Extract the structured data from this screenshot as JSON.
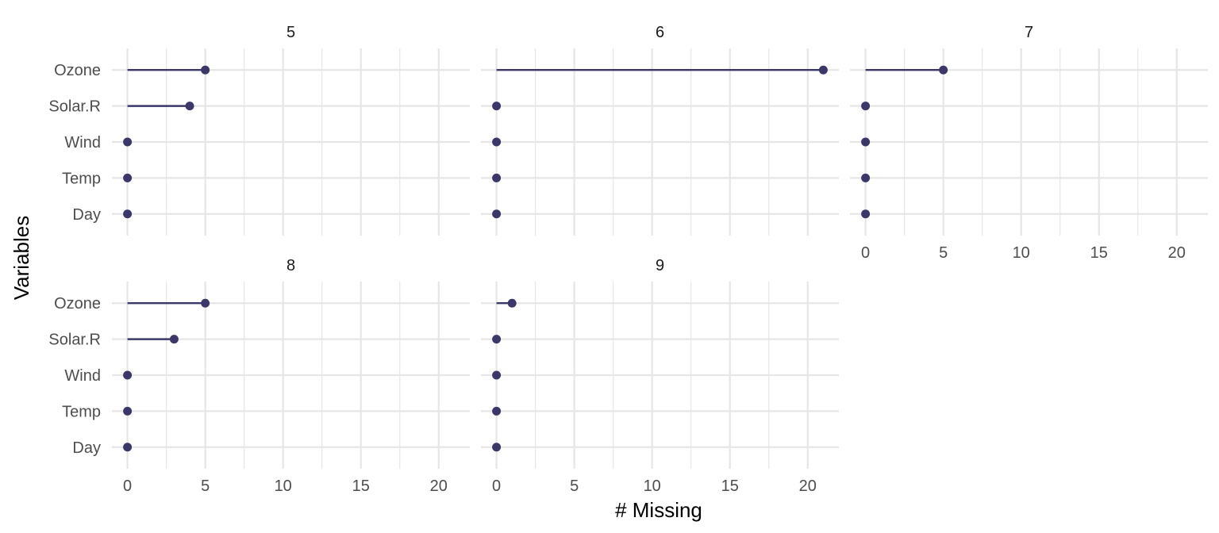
{
  "chart_data": {
    "type": "lollipop",
    "xlabel": "# Missing",
    "ylabel": "Variables",
    "xlim": [
      -1,
      22
    ],
    "x_ticks": [
      0,
      5,
      10,
      15,
      20
    ],
    "variables": [
      "Ozone",
      "Solar.R",
      "Wind",
      "Temp",
      "Day"
    ],
    "grid": true,
    "colors": {
      "mark": "#3b3869",
      "grid": "#e6e6e6"
    },
    "facets": [
      {
        "label": "5",
        "values": [
          5,
          4,
          0,
          0,
          0
        ]
      },
      {
        "label": "6",
        "values": [
          21,
          0,
          0,
          0,
          0
        ]
      },
      {
        "label": "7",
        "values": [
          5,
          0,
          0,
          0,
          0
        ]
      },
      {
        "label": "8",
        "values": [
          5,
          3,
          0,
          0,
          0
        ]
      },
      {
        "label": "9",
        "values": [
          1,
          0,
          0,
          0,
          0
        ]
      }
    ]
  }
}
